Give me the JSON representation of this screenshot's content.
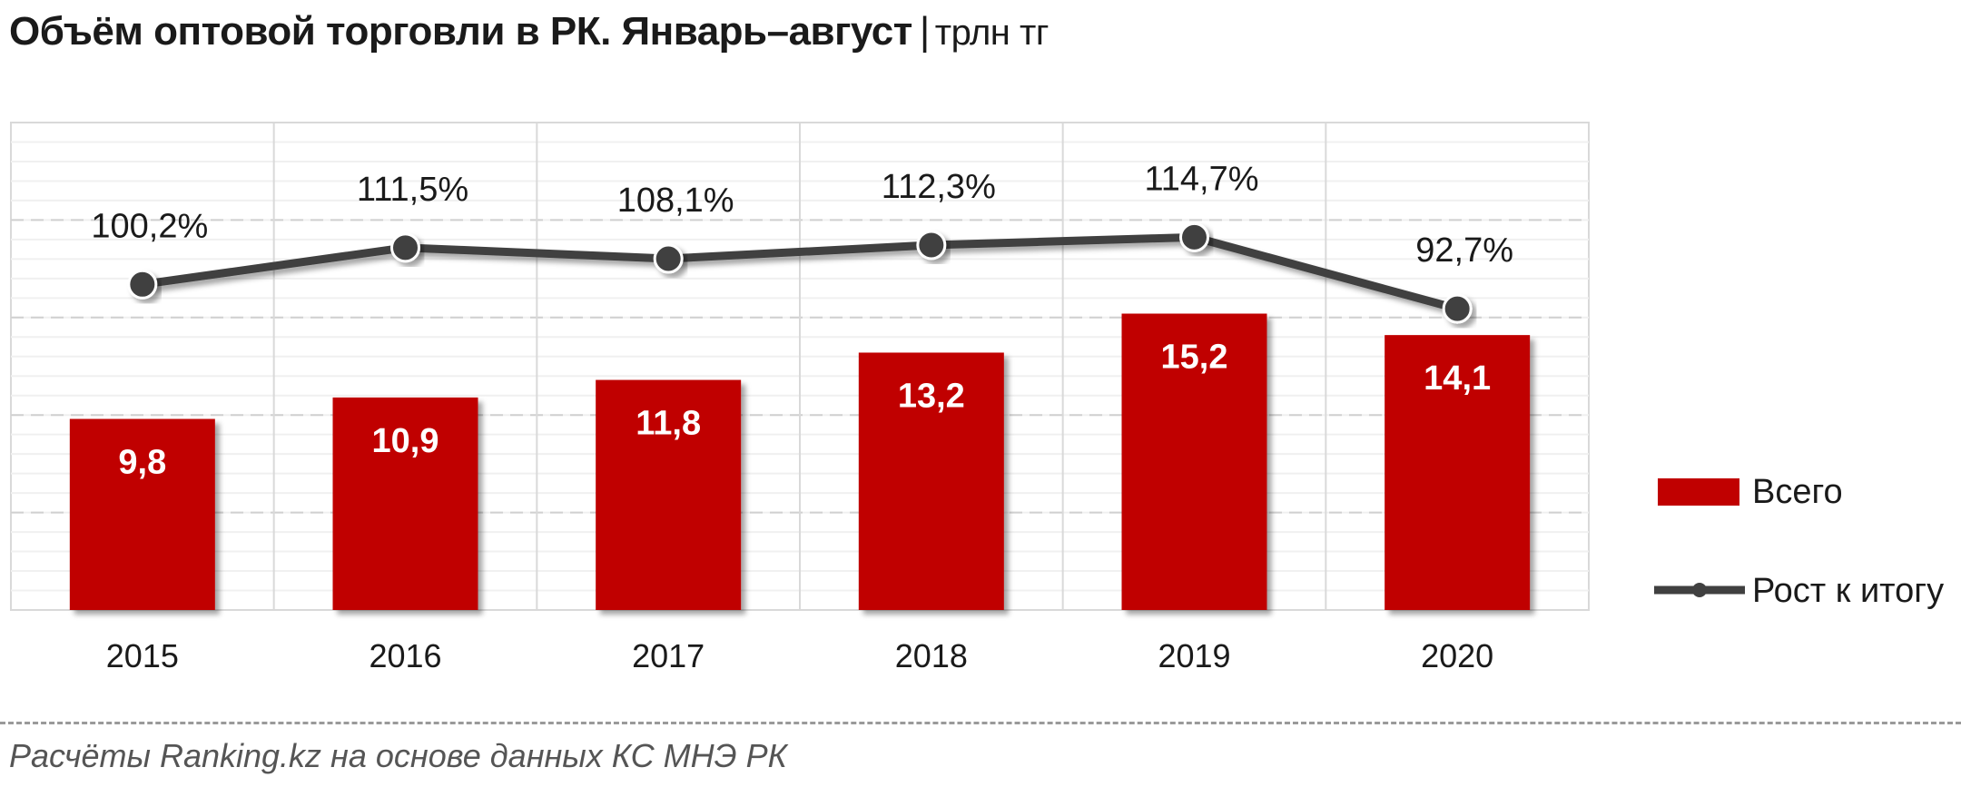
{
  "title": "Объём оптовой торговли в РК. Январь–август",
  "title_sep": "|",
  "unit": "трлн тг",
  "source": "Расчёты Ranking.kz на основе данных  КС МНЭ РК",
  "colors": {
    "bar": "#c00000",
    "line": "#404040",
    "grid": "#d9d9d9"
  },
  "chart_data": {
    "type": "bar",
    "categories": [
      "2015",
      "2016",
      "2017",
      "2018",
      "2019",
      "2020"
    ],
    "series": [
      {
        "name": "Всего",
        "type": "bar",
        "values": [
          9.8,
          10.9,
          11.8,
          13.2,
          15.2,
          14.1
        ],
        "labels": [
          "9,8",
          "10,9",
          "11,8",
          "13,2",
          "15,2",
          "14,1"
        ]
      },
      {
        "name": "Рост к итогу",
        "type": "line",
        "values": [
          100.2,
          111.5,
          108.1,
          112.3,
          114.7,
          92.7
        ],
        "labels": [
          "100,2%",
          "111,5%",
          "108,1%",
          "112,3%",
          "114,7%",
          "92,7%"
        ]
      }
    ],
    "ylim": [
      0,
      25
    ],
    "y2lim": [
      0,
      150
    ],
    "grid": true,
    "legend_position": "right"
  }
}
